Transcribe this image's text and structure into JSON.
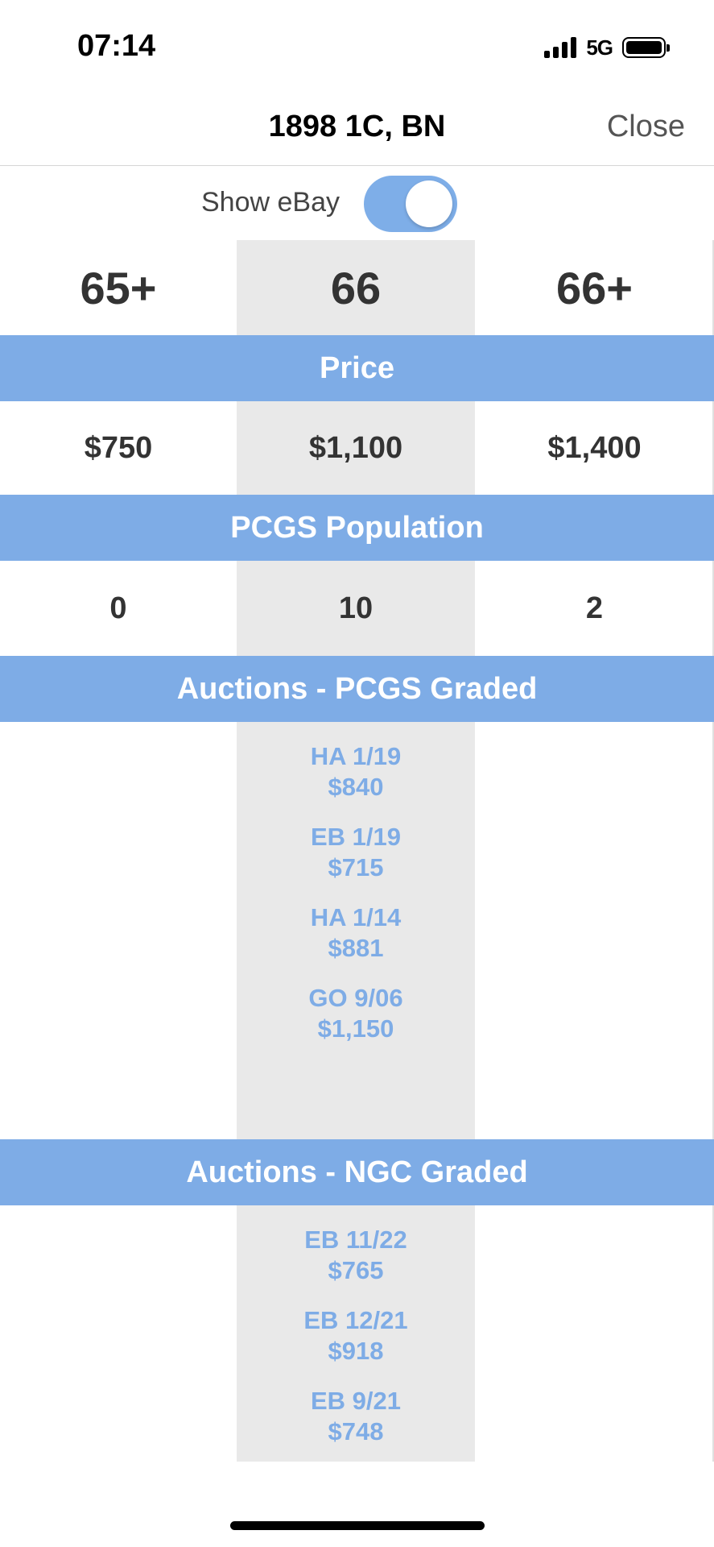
{
  "status": {
    "time": "07:14",
    "network": "5G"
  },
  "nav": {
    "title": "1898 1C, BN",
    "close_label": "Close"
  },
  "toggle": {
    "label": "Show eBay",
    "on": true,
    "color": "#7eaee8"
  },
  "grades": [
    "65+",
    "66",
    "66+"
  ],
  "price": {
    "header": "Price",
    "values": [
      "$750",
      "$1,100",
      "$1,400"
    ]
  },
  "population": {
    "header": "PCGS Population",
    "values": [
      "0",
      "10",
      "2"
    ]
  },
  "auctions_pcgs": {
    "header": "Auctions - PCGS Graded",
    "items": [
      {
        "label": "HA 1/19",
        "price": "$840"
      },
      {
        "label": "EB 1/19",
        "price": "$715"
      },
      {
        "label": "HA 1/14",
        "price": "$881"
      },
      {
        "label": "GO 9/06",
        "price": "$1,150"
      }
    ]
  },
  "auctions_ngc": {
    "header": "Auctions - NGC Graded",
    "items": [
      {
        "label": "EB 11/22",
        "price": "$765"
      },
      {
        "label": "EB 12/21",
        "price": "$918"
      },
      {
        "label": "EB 9/21",
        "price": "$748"
      }
    ]
  },
  "colors": {
    "accent": "#7eace6",
    "highlight": "#e9e9e9"
  }
}
